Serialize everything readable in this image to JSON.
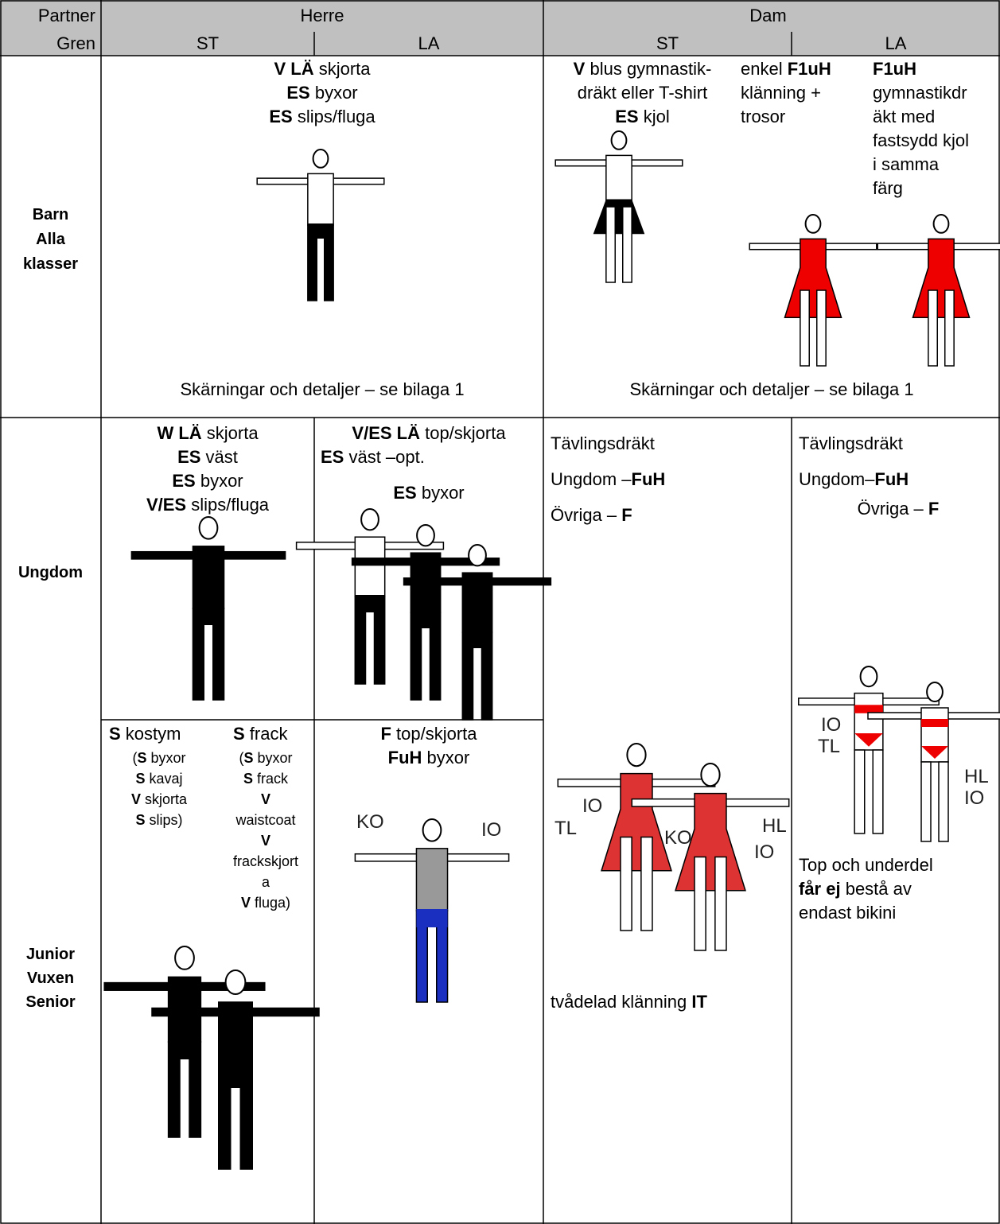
{
  "header": {
    "partner": "Partner",
    "gren": "Gren",
    "herre": "Herre",
    "dam": "Dam",
    "herre_st": "ST",
    "herre_la": "LA",
    "dam_st": "ST",
    "dam_la": "LA"
  },
  "blocks": [
    {
      "lines": [
        [
          {
            "text": "V LÄ",
            "bold": true
          },
          {
            "text": " skjorta"
          }
        ],
        [
          {
            "text": "ES",
            "bold": true
          },
          {
            "text": " byxor"
          }
        ],
        [
          {
            "text": "ES",
            "bold": true
          },
          {
            "text": " slips/fluga"
          }
        ]
      ]
    },
    {
      "lines": [
        [
          {
            "text": "Skärningar och detaljer – se bilaga 1"
          }
        ]
      ]
    },
    {
      "lines": [
        [
          {
            "text": "V",
            "bold": true
          },
          {
            "text": " blus gymnastik-"
          }
        ],
        [
          {
            "text": "dräkt eller T-shirt"
          }
        ],
        [
          {
            "text": "ES",
            "bold": true
          },
          {
            "text": " kjol"
          }
        ]
      ]
    },
    {
      "lines": [
        [
          {
            "text": "enkel "
          },
          {
            "text": "F1uH",
            "bold": true
          }
        ],
        [
          {
            "text": "klänning +"
          }
        ],
        [
          {
            "text": "trosor"
          }
        ]
      ]
    },
    {
      "lines": [
        [
          {
            "text": "F1uH",
            "bold": true
          }
        ],
        [
          {
            "text": "gymnastikdr"
          }
        ],
        [
          {
            "text": "äkt med"
          }
        ],
        [
          {
            "text": "fastsydd kjol"
          }
        ],
        [
          {
            "text": "i samma"
          }
        ],
        [
          {
            "text": "färg"
          }
        ]
      ]
    },
    {
      "lines": [
        [
          {
            "text": "Skärningar och detaljer – se bilaga 1"
          }
        ]
      ]
    },
    {
      "lines": [
        [
          {
            "text": "Barn",
            "bold": true
          }
        ],
        [
          {
            "text": "Alla",
            "bold": true
          }
        ],
        [
          {
            "text": "klasser",
            "bold": true
          }
        ]
      ]
    },
    {
      "lines": [
        [
          {
            "text": "W LÄ",
            "bold": true
          },
          {
            "text": " skjorta"
          }
        ],
        [
          {
            "text": "ES",
            "bold": true
          },
          {
            "text": " väst"
          }
        ],
        [
          {
            "text": "ES",
            "bold": true
          },
          {
            "text": " byxor"
          }
        ],
        [
          {
            "text": "V/ES",
            "bold": true
          },
          {
            "text": " slips/fluga"
          }
        ]
      ]
    },
    {
      "lines": [
        [
          {
            "text": "V/ES LÄ",
            "bold": true
          },
          {
            "text": " top/skjorta"
          }
        ]
      ]
    },
    {
      "lines": [
        [
          {
            "text": "ES",
            "bold": true
          },
          {
            "text": " väst –opt."
          }
        ]
      ]
    },
    {
      "lines": [
        [
          {
            "text": "ES",
            "bold": true
          },
          {
            "text": " byxor"
          }
        ]
      ]
    },
    {
      "lines": [
        [
          {
            "text": "Tävlingsdräkt"
          }
        ],
        [
          {
            "text": "Ungdom –"
          },
          {
            "text": "FuH",
            "bold": true
          }
        ],
        [
          {
            "text": "Övriga – "
          },
          {
            "text": "F",
            "bold": true
          }
        ]
      ]
    },
    {
      "lines": [
        [
          {
            "text": "Tävlingsdräkt"
          }
        ],
        [
          {
            "text": "Ungdom–"
          },
          {
            "text": "FuH",
            "bold": true
          }
        ]
      ]
    },
    {
      "lines": [
        [
          {
            "text": "Övriga – "
          },
          {
            "text": "F",
            "bold": true
          }
        ]
      ]
    },
    {
      "lines": [
        [
          {
            "text": "Ungdom",
            "bold": true
          }
        ]
      ]
    },
    {
      "lines": [
        [
          {
            "text": "S",
            "bold": true
          },
          {
            "text": " kostym"
          }
        ]
      ]
    },
    {
      "lines": [
        [
          {
            "text": "("
          },
          {
            "text": "S",
            "bold": true
          },
          {
            "text": " byxor"
          }
        ],
        [
          {
            "text": "S",
            "bold": true
          },
          {
            "text": " kavaj"
          }
        ],
        [
          {
            "text": "V",
            "bold": true
          },
          {
            "text": " skjorta"
          }
        ],
        [
          {
            "text": "S",
            "bold": true
          },
          {
            "text": " slips)"
          }
        ]
      ]
    },
    {
      "lines": [
        [
          {
            "text": "S",
            "bold": true
          },
          {
            "text": " frack"
          }
        ]
      ]
    },
    {
      "lines": [
        [
          {
            "text": "("
          },
          {
            "text": "S",
            "bold": true
          },
          {
            "text": " byxor"
          }
        ],
        [
          {
            "text": "S",
            "bold": true
          },
          {
            "text": " frack"
          }
        ],
        [
          {
            "text": "V",
            "bold": true
          }
        ],
        [
          {
            "text": "waistcoat"
          }
        ],
        [
          {
            "text": "V",
            "bold": true
          }
        ],
        [
          {
            "text": "frackskjort"
          }
        ],
        [
          {
            "text": "a"
          }
        ],
        [
          {
            "text": "V",
            "bold": true
          },
          {
            "text": " fluga)"
          }
        ]
      ]
    },
    {
      "lines": [
        [
          {
            "text": "F",
            "bold": true
          },
          {
            "text": " top/skjorta"
          }
        ],
        [
          {
            "text": "FuH",
            "bold": true
          },
          {
            "text": " byxor"
          }
        ]
      ]
    },
    {
      "lines": [
        [
          {
            "text": "tvådelad klänning "
          },
          {
            "text": "IT",
            "bold": true
          }
        ]
      ]
    },
    {
      "lines": [
        [
          {
            "text": "Top och underdel"
          }
        ],
        [
          {
            "text": "får ej",
            "bold": true
          },
          {
            "text": " bestå av"
          }
        ],
        [
          {
            "text": "endast bikini"
          }
        ]
      ]
    },
    {
      "lines": [
        [
          {
            "text": "Junior",
            "bold": true
          }
        ],
        [
          {
            "text": "Vuxen",
            "bold": true
          }
        ],
        [
          {
            "text": "Senior",
            "bold": true
          }
        ]
      ]
    }
  ],
  "figure_labels": [
    "KO",
    "IO",
    "IO",
    "TL",
    "KO",
    "HL",
    "IO",
    "IO",
    "TL",
    "HL",
    "IO"
  ]
}
